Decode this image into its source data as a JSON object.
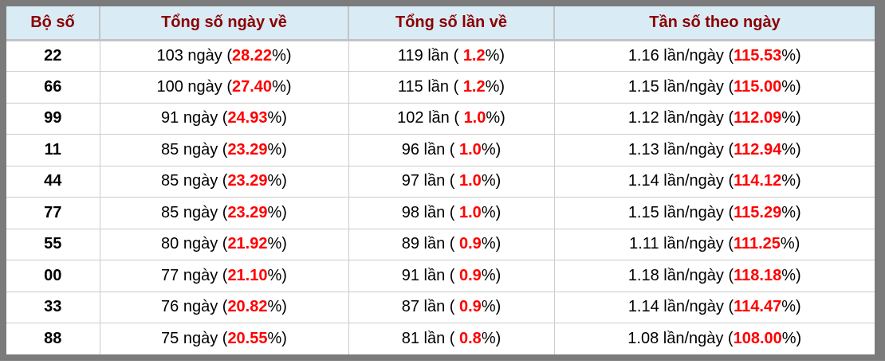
{
  "colors": {
    "frame_gray": "#7b7b7b",
    "header_background": "#d9ecf6",
    "header_text": "#8b0000",
    "highlight_red": "#ff0000",
    "row_border": "#cccccc"
  },
  "table": {
    "columns": [
      "Bộ số",
      "Tổng số ngày về",
      "Tổng số lần về",
      "Tần số theo ngày"
    ],
    "rows": [
      {
        "pair": "22",
        "days": {
          "pre": "103 ngày (",
          "red": "28.22",
          "post": "%)"
        },
        "times": {
          "pre": "119 lần ( ",
          "red": "1.2",
          "post": "%)"
        },
        "freq": {
          "pre": "1.16 lần/ngày (",
          "red": "115.53",
          "post": "%)"
        }
      },
      {
        "pair": "66",
        "days": {
          "pre": "100 ngày (",
          "red": "27.40",
          "post": "%)"
        },
        "times": {
          "pre": "115 lần ( ",
          "red": "1.2",
          "post": "%)"
        },
        "freq": {
          "pre": "1.15 lần/ngày (",
          "red": "115.00",
          "post": "%)"
        }
      },
      {
        "pair": "99",
        "days": {
          "pre": "91 ngày (",
          "red": "24.93",
          "post": "%)"
        },
        "times": {
          "pre": "102 lần ( ",
          "red": "1.0",
          "post": "%)"
        },
        "freq": {
          "pre": "1.12 lần/ngày (",
          "red": "112.09",
          "post": "%)"
        }
      },
      {
        "pair": "11",
        "days": {
          "pre": "85 ngày (",
          "red": "23.29",
          "post": "%)"
        },
        "times": {
          "pre": "96 lần ( ",
          "red": "1.0",
          "post": "%)"
        },
        "freq": {
          "pre": "1.13 lần/ngày (",
          "red": "112.94",
          "post": "%)"
        }
      },
      {
        "pair": "44",
        "days": {
          "pre": "85 ngày (",
          "red": "23.29",
          "post": "%)"
        },
        "times": {
          "pre": "97 lần ( ",
          "red": "1.0",
          "post": "%)"
        },
        "freq": {
          "pre": "1.14 lần/ngày (",
          "red": "114.12",
          "post": "%)"
        }
      },
      {
        "pair": "77",
        "days": {
          "pre": "85 ngày (",
          "red": "23.29",
          "post": "%)"
        },
        "times": {
          "pre": "98 lần ( ",
          "red": "1.0",
          "post": "%)"
        },
        "freq": {
          "pre": "1.15 lần/ngày (",
          "red": "115.29",
          "post": "%)"
        }
      },
      {
        "pair": "55",
        "days": {
          "pre": "80 ngày (",
          "red": "21.92",
          "post": "%)"
        },
        "times": {
          "pre": "89 lần ( ",
          "red": "0.9",
          "post": "%)"
        },
        "freq": {
          "pre": "1.11 lần/ngày (",
          "red": "111.25",
          "post": "%)"
        }
      },
      {
        "pair": "00",
        "days": {
          "pre": "77 ngày (",
          "red": "21.10",
          "post": "%)"
        },
        "times": {
          "pre": "91 lần ( ",
          "red": "0.9",
          "post": "%)"
        },
        "freq": {
          "pre": "1.18 lần/ngày (",
          "red": "118.18",
          "post": "%)"
        }
      },
      {
        "pair": "33",
        "days": {
          "pre": "76 ngày (",
          "red": "20.82",
          "post": "%)"
        },
        "times": {
          "pre": "87 lần ( ",
          "red": "0.9",
          "post": "%)"
        },
        "freq": {
          "pre": "1.14 lần/ngày (",
          "red": "114.47",
          "post": "%)"
        }
      },
      {
        "pair": "88",
        "days": {
          "pre": "75 ngày (",
          "red": "20.55",
          "post": "%)"
        },
        "times": {
          "pre": "81 lần ( ",
          "red": "0.8",
          "post": "%)"
        },
        "freq": {
          "pre": "1.08 lần/ngày (",
          "red": "108.00",
          "post": "%)"
        }
      }
    ]
  }
}
